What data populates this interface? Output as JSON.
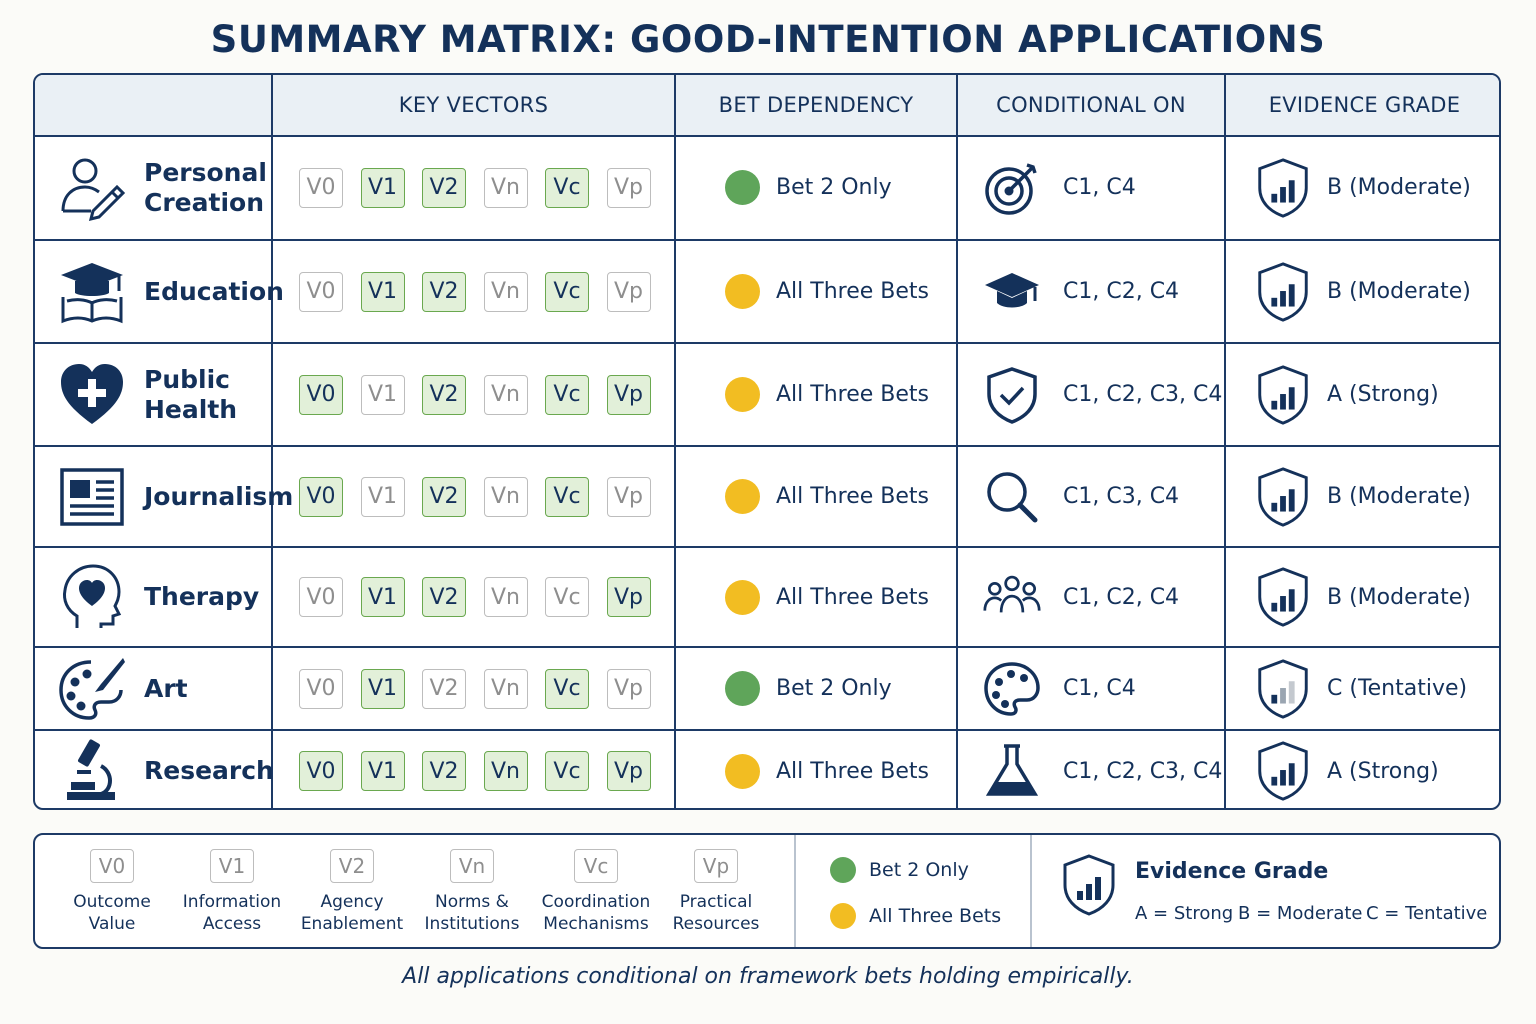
{
  "title": "SUMMARY MATRIX: GOOD-INTENTION APPLICATIONS",
  "headers": {
    "application": "",
    "key_vectors": "KEY VECTORS",
    "bet_dependency": "BET DEPENDENCY",
    "conditional_on": "CONDITIONAL ON",
    "evidence_grade": "EVIDENCE GRADE"
  },
  "vector_labels": [
    "V0",
    "V1",
    "V2",
    "Vn",
    "Vc",
    "Vp"
  ],
  "colors": {
    "navy": "#14315a",
    "chip_active_bg": "#e2f0d9",
    "chip_active_border": "#6aa84f",
    "bet2_green": "#5fa55a",
    "all_three_yellow": "#f2bd22"
  },
  "rows": [
    {
      "name_lines": [
        "Personal",
        "Creation"
      ],
      "icon": "person-pen-icon",
      "vectors": {
        "V0": false,
        "V1": true,
        "V2": true,
        "Vn": false,
        "Vc": true,
        "Vp": false
      },
      "bet": "Bet 2 Only",
      "bet_color": "green",
      "conditional": "C1, C4",
      "cond_icon": "target-icon",
      "grade": "B (Moderate)",
      "grade_icon": "shield-chart-icon"
    },
    {
      "name_lines": [
        "Education"
      ],
      "icon": "graduation-book-icon",
      "vectors": {
        "V0": false,
        "V1": true,
        "V2": true,
        "Vn": false,
        "Vc": true,
        "Vp": false
      },
      "bet": "All Three Bets",
      "bet_color": "yellow",
      "conditional": "C1, C2, C4",
      "cond_icon": "graduation-cap-icon",
      "grade": "B (Moderate)",
      "grade_icon": "shield-chart-icon"
    },
    {
      "name_lines": [
        "Public",
        "Health"
      ],
      "icon": "heart-cross-icon",
      "vectors": {
        "V0": true,
        "V1": false,
        "V2": true,
        "Vn": false,
        "Vc": true,
        "Vp": true
      },
      "bet": "All Three Bets",
      "bet_color": "yellow",
      "conditional": "C1, C2, C3, C4",
      "cond_icon": "shield-check-icon",
      "grade": "A (Strong)",
      "grade_icon": "shield-chart-icon"
    },
    {
      "name_lines": [
        "Journalism"
      ],
      "icon": "newspaper-icon",
      "vectors": {
        "V0": true,
        "V1": false,
        "V2": true,
        "Vn": false,
        "Vc": true,
        "Vp": false
      },
      "bet": "All Three Bets",
      "bet_color": "yellow",
      "conditional": "C1, C3, C4",
      "cond_icon": "magnifier-icon",
      "grade": "B (Moderate)",
      "grade_icon": "shield-chart-icon"
    },
    {
      "name_lines": [
        "Therapy"
      ],
      "icon": "head-heart-icon",
      "vectors": {
        "V0": false,
        "V1": true,
        "V2": true,
        "Vn": false,
        "Vc": false,
        "Vp": true
      },
      "bet": "All Three Bets",
      "bet_color": "yellow",
      "conditional": "C1, C2, C4",
      "cond_icon": "people-group-icon",
      "grade": "B (Moderate)",
      "grade_icon": "shield-chart-icon"
    },
    {
      "name_lines": [
        "Art"
      ],
      "icon": "palette-brush-icon",
      "vectors": {
        "V0": false,
        "V1": true,
        "V2": false,
        "Vn": false,
        "Vc": true,
        "Vp": false
      },
      "bet": "Bet 2 Only",
      "bet_color": "green",
      "conditional": "C1, C4",
      "cond_icon": "palette-icon",
      "grade": "C (Tentative)",
      "grade_icon": "shield-chart-faded-icon"
    },
    {
      "name_lines": [
        "Research"
      ],
      "icon": "microscope-icon",
      "vectors": {
        "V0": true,
        "V1": true,
        "V2": true,
        "Vn": true,
        "Vc": true,
        "Vp": true
      },
      "bet": "All Three Bets",
      "bet_color": "yellow",
      "conditional": "C1, C2, C3, C4",
      "cond_icon": "flask-icon",
      "grade": "A (Strong)",
      "grade_icon": "shield-chart-icon"
    }
  ],
  "legend": {
    "vectors": [
      {
        "code": "V0",
        "desc_lines": [
          "Outcome",
          "Value"
        ]
      },
      {
        "code": "V1",
        "desc_lines": [
          "Information",
          "Access"
        ]
      },
      {
        "code": "V2",
        "desc_lines": [
          "Agency",
          "Enablement"
        ]
      },
      {
        "code": "Vn",
        "desc_lines": [
          "Norms &",
          "Institutions"
        ]
      },
      {
        "code": "Vc",
        "desc_lines": [
          "Coordination",
          "Mechanisms"
        ]
      },
      {
        "code": "Vp",
        "desc_lines": [
          "Practical",
          "Resources"
        ]
      }
    ],
    "bets": [
      {
        "label": "Bet 2 Only",
        "color": "green"
      },
      {
        "label": "All Three Bets",
        "color": "yellow"
      }
    ],
    "evidence_title": "Evidence Grade",
    "evidence_keys": [
      "A = Strong",
      "B = Moderate",
      "C = Tentative"
    ]
  },
  "footer": "All applications conditional on framework bets holding empirically."
}
